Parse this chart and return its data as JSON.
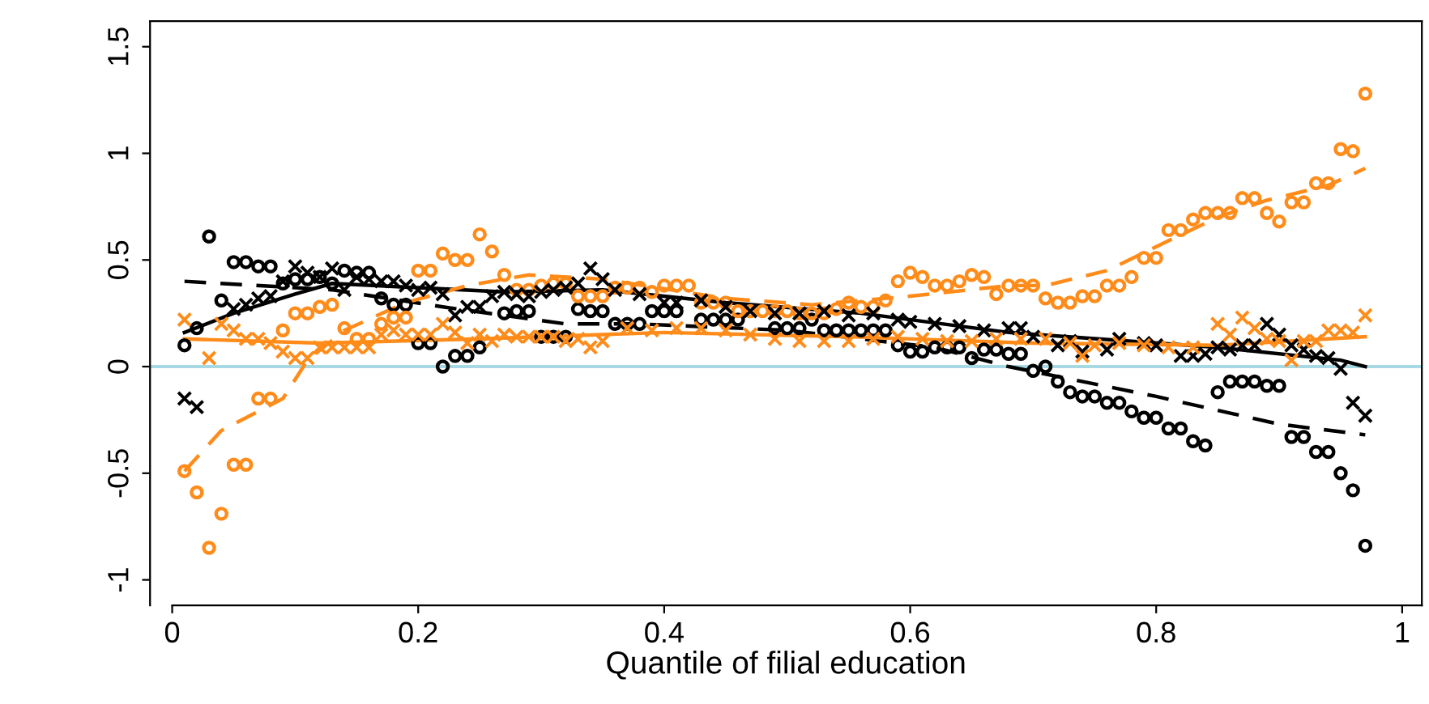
{
  "chart_data": {
    "type": "scatter",
    "xlabel": "Quantile of filial education",
    "xlim": [
      -0.018,
      1.016
    ],
    "ylim": [
      -1.12,
      1.62
    ],
    "xticks": [
      0,
      0.2,
      0.4,
      0.6,
      0.8,
      1
    ],
    "yticks": [
      -1,
      -0.5,
      0,
      0.5,
      1,
      1.5
    ],
    "grid": false,
    "ref_lines": [
      {
        "axis": "y",
        "value": 0,
        "color": "#a6d9e3",
        "line_style": "solid"
      }
    ],
    "series": [
      {
        "type": "scatter",
        "marker": "circle",
        "color": "#000000",
        "x": [
          0.01,
          0.02,
          0.03,
          0.04,
          0.05,
          0.06,
          0.07,
          0.08,
          0.09,
          0.1,
          0.11,
          0.12,
          0.13,
          0.14,
          0.15,
          0.16,
          0.17,
          0.18,
          0.19,
          0.2,
          0.21,
          0.22,
          0.23,
          0.24,
          0.25,
          0.27,
          0.28,
          0.29,
          0.3,
          0.31,
          0.32,
          0.33,
          0.34,
          0.35,
          0.36,
          0.37,
          0.38,
          0.39,
          0.4,
          0.41,
          0.43,
          0.44,
          0.45,
          0.46,
          0.49,
          0.5,
          0.51,
          0.52,
          0.53,
          0.54,
          0.55,
          0.56,
          0.57,
          0.58,
          0.59,
          0.6,
          0.61,
          0.62,
          0.63,
          0.64,
          0.65,
          0.66,
          0.67,
          0.68,
          0.69,
          0.7,
          0.71,
          0.72,
          0.73,
          0.74,
          0.75,
          0.76,
          0.77,
          0.78,
          0.79,
          0.8,
          0.81,
          0.82,
          0.83,
          0.84,
          0.85,
          0.86,
          0.87,
          0.88,
          0.89,
          0.9,
          0.91,
          0.92,
          0.93,
          0.94,
          0.95,
          0.96,
          0.97
        ],
        "values": [
          0.1,
          0.18,
          0.61,
          0.31,
          0.49,
          0.49,
          0.47,
          0.47,
          0.39,
          0.41,
          0.41,
          0.42,
          0.39,
          0.45,
          0.44,
          0.44,
          0.32,
          0.29,
          0.29,
          0.11,
          0.11,
          0.0,
          0.05,
          0.05,
          0.09,
          0.25,
          0.26,
          0.26,
          0.14,
          0.14,
          0.14,
          0.27,
          0.26,
          0.26,
          0.2,
          0.2,
          0.2,
          0.26,
          0.26,
          0.26,
          0.22,
          0.22,
          0.22,
          0.22,
          0.18,
          0.18,
          0.18,
          0.22,
          0.17,
          0.17,
          0.17,
          0.17,
          0.17,
          0.17,
          0.1,
          0.07,
          0.07,
          0.09,
          0.09,
          0.09,
          0.04,
          0.08,
          0.08,
          0.06,
          0.06,
          -0.02,
          0.0,
          -0.07,
          -0.12,
          -0.14,
          -0.14,
          -0.17,
          -0.17,
          -0.21,
          -0.24,
          -0.24,
          -0.29,
          -0.29,
          -0.35,
          -0.37,
          -0.12,
          -0.07,
          -0.07,
          -0.07,
          -0.09,
          -0.09,
          -0.33,
          -0.33,
          -0.4,
          -0.4,
          -0.5,
          -0.58,
          -0.84
        ]
      },
      {
        "type": "scatter",
        "marker": "cross",
        "color": "#000000",
        "x": [
          0.01,
          0.02,
          0.05,
          0.06,
          0.07,
          0.08,
          0.09,
          0.1,
          0.11,
          0.12,
          0.13,
          0.14,
          0.15,
          0.16,
          0.17,
          0.18,
          0.19,
          0.2,
          0.21,
          0.22,
          0.23,
          0.24,
          0.25,
          0.26,
          0.27,
          0.28,
          0.29,
          0.3,
          0.31,
          0.32,
          0.33,
          0.34,
          0.35,
          0.36,
          0.38,
          0.4,
          0.41,
          0.43,
          0.45,
          0.47,
          0.49,
          0.51,
          0.53,
          0.55,
          0.57,
          0.59,
          0.6,
          0.62,
          0.64,
          0.66,
          0.68,
          0.69,
          0.7,
          0.72,
          0.73,
          0.74,
          0.76,
          0.77,
          0.79,
          0.8,
          0.82,
          0.83,
          0.84,
          0.85,
          0.86,
          0.87,
          0.88,
          0.89,
          0.9,
          0.91,
          0.92,
          0.93,
          0.94,
          0.95,
          0.96,
          0.97
        ],
        "values": [
          -0.15,
          -0.19,
          0.27,
          0.29,
          0.32,
          0.33,
          0.4,
          0.47,
          0.44,
          0.42,
          0.46,
          0.36,
          0.42,
          0.41,
          0.4,
          0.4,
          0.38,
          0.36,
          0.37,
          0.34,
          0.24,
          0.28,
          0.28,
          0.33,
          0.35,
          0.34,
          0.33,
          0.35,
          0.36,
          0.37,
          0.39,
          0.46,
          0.41,
          0.36,
          0.34,
          0.3,
          0.3,
          0.31,
          0.28,
          0.26,
          0.25,
          0.25,
          0.26,
          0.24,
          0.25,
          0.22,
          0.21,
          0.2,
          0.19,
          0.17,
          0.18,
          0.18,
          0.14,
          0.1,
          0.12,
          0.07,
          0.08,
          0.13,
          0.11,
          0.1,
          0.05,
          0.05,
          0.06,
          0.09,
          0.08,
          0.1,
          0.1,
          0.2,
          0.15,
          0.1,
          0.08,
          0.05,
          0.04,
          -0.01,
          -0.17,
          -0.23
        ]
      },
      {
        "type": "scatter",
        "marker": "circle",
        "color": "#ff8c1a",
        "x": [
          0.01,
          0.02,
          0.03,
          0.04,
          0.05,
          0.06,
          0.07,
          0.08,
          0.09,
          0.1,
          0.11,
          0.12,
          0.13,
          0.14,
          0.15,
          0.16,
          0.17,
          0.18,
          0.19,
          0.2,
          0.21,
          0.22,
          0.23,
          0.24,
          0.25,
          0.26,
          0.27,
          0.28,
          0.29,
          0.3,
          0.31,
          0.32,
          0.33,
          0.34,
          0.35,
          0.36,
          0.37,
          0.38,
          0.39,
          0.4,
          0.41,
          0.42,
          0.43,
          0.44,
          0.45,
          0.46,
          0.47,
          0.48,
          0.49,
          0.5,
          0.51,
          0.52,
          0.53,
          0.54,
          0.55,
          0.56,
          0.57,
          0.58,
          0.59,
          0.6,
          0.61,
          0.62,
          0.63,
          0.64,
          0.65,
          0.66,
          0.67,
          0.68,
          0.69,
          0.7,
          0.71,
          0.72,
          0.73,
          0.74,
          0.75,
          0.76,
          0.77,
          0.78,
          0.79,
          0.8,
          0.81,
          0.82,
          0.83,
          0.84,
          0.85,
          0.86,
          0.87,
          0.88,
          0.89,
          0.9,
          0.91,
          0.92,
          0.93,
          0.94,
          0.95,
          0.96,
          0.97
        ],
        "values": [
          -0.49,
          -0.59,
          -0.85,
          -0.69,
          -0.46,
          -0.46,
          -0.15,
          -0.15,
          0.17,
          0.25,
          0.25,
          0.28,
          0.29,
          0.18,
          0.13,
          0.13,
          0.2,
          0.23,
          0.23,
          0.45,
          0.45,
          0.53,
          0.5,
          0.5,
          0.62,
          0.54,
          0.43,
          0.36,
          0.36,
          0.38,
          0.39,
          0.39,
          0.33,
          0.33,
          0.33,
          0.37,
          0.37,
          0.37,
          0.35,
          0.38,
          0.38,
          0.38,
          0.3,
          0.3,
          0.3,
          0.26,
          0.26,
          0.26,
          0.26,
          0.26,
          0.25,
          0.25,
          0.25,
          0.27,
          0.3,
          0.28,
          0.28,
          0.31,
          0.4,
          0.44,
          0.42,
          0.38,
          0.38,
          0.4,
          0.43,
          0.42,
          0.34,
          0.38,
          0.38,
          0.38,
          0.32,
          0.3,
          0.3,
          0.33,
          0.33,
          0.38,
          0.38,
          0.42,
          0.51,
          0.51,
          0.64,
          0.64,
          0.69,
          0.72,
          0.72,
          0.72,
          0.79,
          0.79,
          0.72,
          0.68,
          0.77,
          0.77,
          0.86,
          0.86,
          1.02,
          1.01,
          1.28
        ]
      },
      {
        "type": "scatter",
        "marker": "cross",
        "color": "#ff8c1a",
        "x": [
          0.01,
          0.03,
          0.04,
          0.05,
          0.06,
          0.07,
          0.08,
          0.09,
          0.1,
          0.11,
          0.12,
          0.13,
          0.14,
          0.15,
          0.16,
          0.17,
          0.18,
          0.19,
          0.2,
          0.21,
          0.22,
          0.23,
          0.24,
          0.25,
          0.26,
          0.27,
          0.28,
          0.29,
          0.3,
          0.31,
          0.32,
          0.33,
          0.34,
          0.35,
          0.37,
          0.39,
          0.41,
          0.43,
          0.45,
          0.47,
          0.49,
          0.51,
          0.53,
          0.55,
          0.57,
          0.59,
          0.61,
          0.63,
          0.65,
          0.67,
          0.69,
          0.71,
          0.73,
          0.74,
          0.75,
          0.77,
          0.79,
          0.81,
          0.83,
          0.85,
          0.86,
          0.87,
          0.88,
          0.89,
          0.9,
          0.91,
          0.92,
          0.93,
          0.94,
          0.95,
          0.96,
          0.97
        ],
        "values": [
          0.22,
          0.04,
          0.2,
          0.17,
          0.13,
          0.13,
          0.11,
          0.07,
          0.04,
          0.04,
          0.09,
          0.09,
          0.09,
          0.09,
          0.09,
          0.15,
          0.17,
          0.15,
          0.15,
          0.15,
          0.2,
          0.16,
          0.11,
          0.15,
          0.12,
          0.15,
          0.14,
          0.14,
          0.14,
          0.14,
          0.12,
          0.13,
          0.09,
          0.12,
          0.18,
          0.17,
          0.18,
          0.18,
          0.17,
          0.15,
          0.13,
          0.12,
          0.12,
          0.12,
          0.13,
          0.14,
          0.13,
          0.12,
          0.12,
          0.13,
          0.13,
          0.13,
          0.11,
          0.05,
          0.1,
          0.11,
          0.1,
          0.09,
          0.09,
          0.2,
          0.15,
          0.23,
          0.18,
          0.13,
          0.12,
          0.03,
          0.12,
          0.12,
          0.17,
          0.17,
          0.16,
          0.24
        ]
      },
      {
        "type": "line",
        "line_style": "solid",
        "color": "#000000",
        "x": [
          0.01,
          0.05,
          0.1,
          0.13,
          0.2,
          0.27,
          0.35,
          0.45,
          0.56,
          0.68,
          0.85,
          0.95,
          0.97
        ],
        "values": [
          0.16,
          0.25,
          0.34,
          0.39,
          0.37,
          0.35,
          0.36,
          0.3,
          0.25,
          0.16,
          0.09,
          0.03,
          0.0
        ]
      },
      {
        "type": "line",
        "line_style": "dashed",
        "color": "#000000",
        "x": [
          0.01,
          0.13,
          0.22,
          0.32,
          0.38,
          0.5,
          0.62,
          0.68,
          0.8,
          0.9,
          0.97
        ],
        "values": [
          0.4,
          0.36,
          0.28,
          0.2,
          0.2,
          0.17,
          0.09,
          0.0,
          -0.14,
          -0.27,
          -0.32
        ]
      },
      {
        "type": "line",
        "line_style": "solid",
        "color": "#ff8c1a",
        "x": [
          0.01,
          0.12,
          0.25,
          0.4,
          0.55,
          0.7,
          0.85,
          0.97
        ],
        "values": [
          0.13,
          0.11,
          0.13,
          0.16,
          0.14,
          0.11,
          0.1,
          0.14
        ]
      },
      {
        "type": "line",
        "line_style": "dashed",
        "color": "#ff8c1a",
        "x": [
          0.01,
          0.04,
          0.09,
          0.11,
          0.14,
          0.19,
          0.24,
          0.29,
          0.35,
          0.45,
          0.52,
          0.6,
          0.68,
          0.71,
          0.76,
          0.81,
          0.85,
          0.89,
          0.94,
          0.97
        ],
        "values": [
          -0.49,
          -0.3,
          -0.15,
          0.03,
          0.17,
          0.3,
          0.38,
          0.43,
          0.41,
          0.32,
          0.29,
          0.33,
          0.38,
          0.38,
          0.45,
          0.59,
          0.7,
          0.78,
          0.85,
          0.93
        ]
      }
    ]
  }
}
